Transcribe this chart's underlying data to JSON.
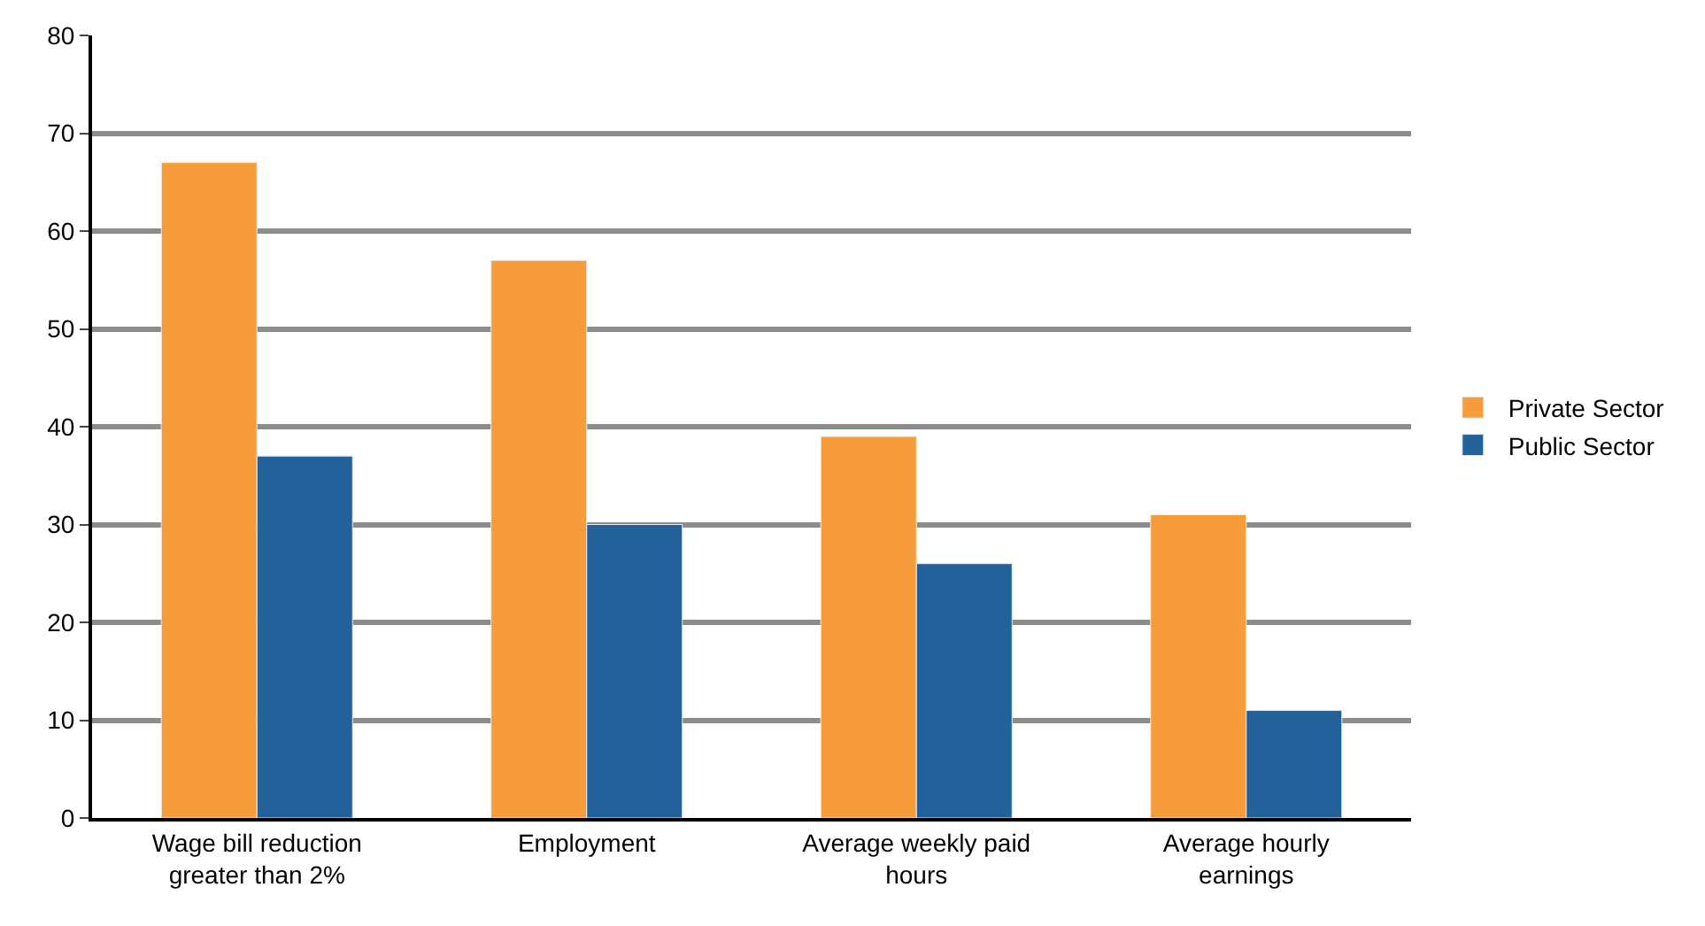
{
  "chart_data": {
    "type": "bar",
    "categories": [
      "Wage bill reduction greater than 2%",
      "Employment",
      "Average weekly paid hours",
      "Average hourly earnings"
    ],
    "series": [
      {
        "name": "Private Sector",
        "color": "#f79c3a",
        "values": [
          67,
          57,
          39,
          31
        ]
      },
      {
        "name": "Public Sector",
        "color": "#23619b",
        "values": [
          37,
          30,
          26,
          11
        ]
      }
    ],
    "ylim": [
      0,
      80
    ],
    "yticks": [
      0,
      10,
      20,
      30,
      40,
      50,
      60,
      70,
      80
    ],
    "grid": "y",
    "legend": "right"
  }
}
